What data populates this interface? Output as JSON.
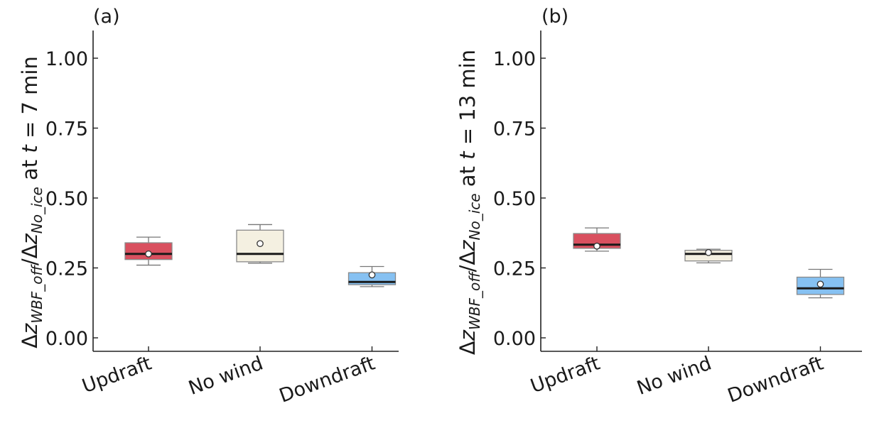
{
  "chart_data": [
    {
      "type": "box",
      "panel_label": "(a)",
      "ylabel_parts": {
        "delta": "Δ",
        "z": "z",
        "num_sub": "WBF_off",
        "slash": "/",
        "den_sub": "No_ice",
        "at": " at ",
        "t": "t",
        "rest": " = 7 min"
      },
      "ylim": [
        -0.05,
        1.1
      ],
      "yticks": [
        0.0,
        0.25,
        0.5,
        0.75,
        1.0
      ],
      "ytick_labels": [
        "0.00",
        "0.25",
        "0.50",
        "0.75",
        "1.00"
      ],
      "categories": [
        "Updraft",
        "No wind",
        "Downdraft"
      ],
      "boxes": [
        {
          "category": "Updraft",
          "whisker_low": 0.26,
          "q1": 0.28,
          "median": 0.3,
          "q3": 0.34,
          "whisker_high": 0.36,
          "mean": 0.3,
          "color": "#d9505f"
        },
        {
          "category": "No wind",
          "whisker_low": 0.267,
          "q1": 0.272,
          "median": 0.3,
          "q3": 0.385,
          "whisker_high": 0.405,
          "mean": 0.337,
          "color": "#f4f0e1"
        },
        {
          "category": "Downdraft",
          "whisker_low": 0.183,
          "q1": 0.19,
          "median": 0.2,
          "q3": 0.233,
          "whisker_high": 0.255,
          "mean": 0.225,
          "color": "#86c1f2"
        }
      ]
    },
    {
      "type": "box",
      "panel_label": "(b)",
      "ylabel_parts": {
        "delta": "Δ",
        "z": "z",
        "num_sub": "WBF_off",
        "slash": "/",
        "den_sub": "No_ice",
        "at": " at ",
        "t": "t",
        "rest": " = 13 min"
      },
      "ylim": [
        -0.05,
        1.1
      ],
      "yticks": [
        0.0,
        0.25,
        0.5,
        0.75,
        1.0
      ],
      "ytick_labels": [
        "0.00",
        "0.25",
        "0.50",
        "0.75",
        "1.00"
      ],
      "categories": [
        "Updraft",
        "No wind",
        "Downdraft"
      ],
      "boxes": [
        {
          "category": "Updraft",
          "whisker_low": 0.31,
          "q1": 0.32,
          "median": 0.333,
          "q3": 0.373,
          "whisker_high": 0.393,
          "mean": 0.328,
          "color": "#d9505f"
        },
        {
          "category": "No wind",
          "whisker_low": 0.268,
          "q1": 0.275,
          "median": 0.3,
          "q3": 0.313,
          "whisker_high": 0.317,
          "mean": 0.305,
          "color": "#f4f0e1"
        },
        {
          "category": "Downdraft",
          "whisker_low": 0.143,
          "q1": 0.155,
          "median": 0.177,
          "q3": 0.217,
          "whisker_high": 0.245,
          "mean": 0.192,
          "color": "#86c1f2"
        }
      ]
    }
  ]
}
